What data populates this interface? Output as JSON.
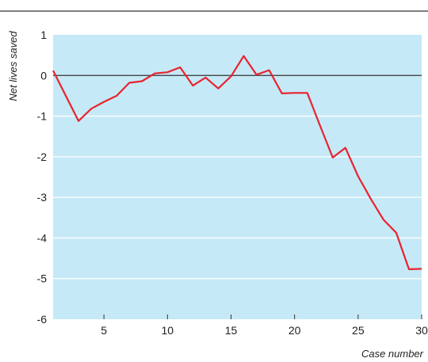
{
  "chart_data": {
    "type": "line",
    "xlabel": "Case number",
    "ylabel": "Net lives saved",
    "xlim": [
      1,
      30
    ],
    "ylim": [
      -6,
      1
    ],
    "xticks": [
      5,
      10,
      15,
      20,
      25,
      30
    ],
    "yticks": [
      1,
      0,
      -1,
      -2,
      -3,
      -4,
      -5,
      -6
    ],
    "grid": true,
    "colors": {
      "plot_background": "#c6e9f7",
      "line": "#e8232f",
      "zero_line": "#333333",
      "grid": "#ffffff",
      "top_rule": "#333333"
    },
    "series": [
      {
        "x": [
          1,
          2,
          3,
          4,
          5,
          6,
          7,
          8,
          9,
          10,
          11,
          12,
          13,
          14,
          15,
          16,
          17,
          18,
          19,
          20,
          21,
          22,
          23,
          24,
          25,
          26,
          27,
          28,
          29,
          30
        ],
        "values": [
          0.12,
          -0.5,
          -1.12,
          -0.82,
          -0.65,
          -0.5,
          -0.18,
          -0.14,
          0.05,
          0.08,
          0.2,
          -0.25,
          -0.05,
          -0.32,
          -0.02,
          0.48,
          0.02,
          0.13,
          -0.44,
          -0.43,
          -0.43,
          -1.23,
          -2.02,
          -1.78,
          -2.48,
          -3.04,
          -3.55,
          -3.87,
          -4.77,
          -4.76
        ]
      }
    ]
  }
}
